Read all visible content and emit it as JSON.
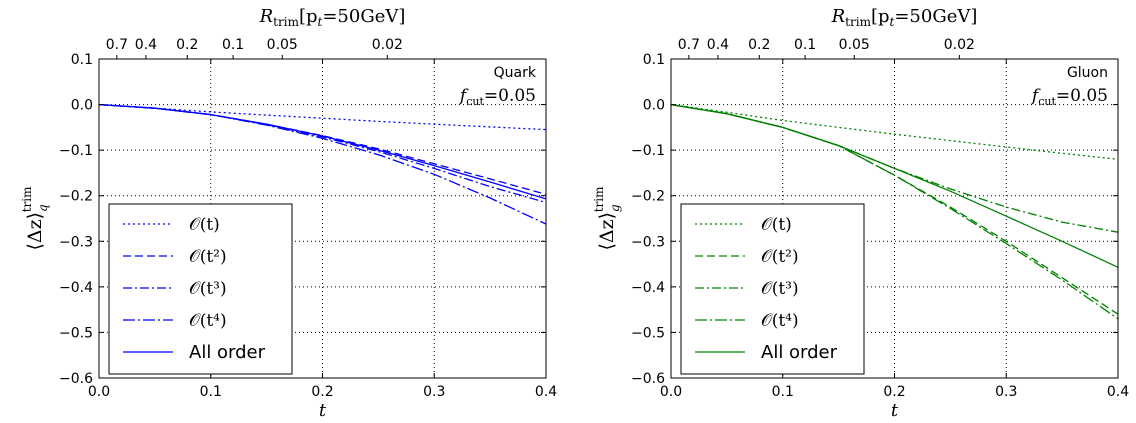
{
  "chart_data": [
    {
      "type": "line",
      "color": "#0000ff",
      "annotation": {
        "line1": "Quark",
        "fcut_label": "f",
        "fcut_sub": "cut",
        "fcut_value": "=0.05"
      },
      "xlabel": "t",
      "ylabel": {
        "main": "⟨Δz⟩",
        "sub": "q",
        "sup": "trim"
      },
      "top_axis": {
        "label_main": "R",
        "label_sub": "trim",
        "label_rest": "[p",
        "label_sub2": "t",
        "label_end": "=50GeV]",
        "ticks": [
          {
            "label": "0.7",
            "t": 0.016
          },
          {
            "label": "0.4",
            "t": 0.042
          },
          {
            "label": "0.2",
            "t": 0.079
          },
          {
            "label": "0.1",
            "t": 0.12
          },
          {
            "label": "0.05",
            "t": 0.164
          },
          {
            "label": "0.02",
            "t": 0.258
          }
        ]
      },
      "xlim": [
        0.0,
        0.4
      ],
      "ylim": [
        -0.6,
        0.1
      ],
      "xticks": [
        "0.0",
        "0.1",
        "0.2",
        "0.3",
        "0.4"
      ],
      "yticks": [
        "−0.6",
        "−0.5",
        "−0.4",
        "−0.3",
        "−0.2",
        "−0.1",
        "0.0",
        "0.1"
      ],
      "grid": true,
      "legend_position": "lower-left",
      "series": [
        {
          "name": "O(t)",
          "math": "𝒪(t)",
          "dash": "dotted",
          "x": [
            0,
            0.05,
            0.1,
            0.15,
            0.2,
            0.25,
            0.3,
            0.35,
            0.4
          ],
          "y": [
            0,
            -0.008,
            -0.016,
            -0.023,
            -0.03,
            -0.037,
            -0.043,
            -0.049,
            -0.055
          ]
        },
        {
          "name": "O(t^2)",
          "math": "𝒪(t²)",
          "dash": "dashed",
          "x": [
            0,
            0.05,
            0.1,
            0.15,
            0.2,
            0.25,
            0.3,
            0.35,
            0.4
          ],
          "y": [
            0,
            -0.008,
            -0.022,
            -0.043,
            -0.068,
            -0.097,
            -0.13,
            -0.163,
            -0.197
          ]
        },
        {
          "name": "O(t^3)",
          "math": "𝒪(t³)",
          "dash": "dashdot",
          "x": [
            0,
            0.05,
            0.1,
            0.15,
            0.2,
            0.25,
            0.3,
            0.35,
            0.4
          ],
          "y": [
            0,
            -0.008,
            -0.022,
            -0.044,
            -0.071,
            -0.103,
            -0.14,
            -0.18,
            -0.215
          ]
        },
        {
          "name": "O(t^4)",
          "math": "𝒪(t⁴)",
          "dash": "dashdot2",
          "x": [
            0,
            0.05,
            0.1,
            0.15,
            0.2,
            0.25,
            0.3,
            0.35,
            0.4
          ],
          "y": [
            0,
            -0.008,
            -0.022,
            -0.045,
            -0.074,
            -0.11,
            -0.153,
            -0.205,
            -0.262
          ]
        },
        {
          "name": "All order",
          "math": "All order",
          "dash": "solid",
          "x": [
            0,
            0.05,
            0.1,
            0.15,
            0.2,
            0.25,
            0.3,
            0.35,
            0.4
          ],
          "y": [
            0,
            -0.008,
            -0.022,
            -0.043,
            -0.069,
            -0.1,
            -0.134,
            -0.17,
            -0.207
          ]
        }
      ]
    },
    {
      "type": "line",
      "color": "#008000",
      "annotation": {
        "line1": "Gluon",
        "fcut_label": "f",
        "fcut_sub": "cut",
        "fcut_value": "=0.05"
      },
      "xlabel": "t",
      "ylabel": {
        "main": "⟨Δz⟩",
        "sub": "g",
        "sup": "trim"
      },
      "top_axis": {
        "label_main": "R",
        "label_sub": "trim",
        "label_rest": "[p",
        "label_sub2": "t",
        "label_end": "=50GeV]",
        "ticks": [
          {
            "label": "0.7",
            "t": 0.016
          },
          {
            "label": "0.4",
            "t": 0.042
          },
          {
            "label": "0.2",
            "t": 0.079
          },
          {
            "label": "0.1",
            "t": 0.12
          },
          {
            "label": "0.05",
            "t": 0.164
          },
          {
            "label": "0.02",
            "t": 0.258
          }
        ]
      },
      "xlim": [
        0.0,
        0.4
      ],
      "ylim": [
        -0.6,
        0.1
      ],
      "xticks": [
        "0.0",
        "0.1",
        "0.2",
        "0.3",
        "0.4"
      ],
      "yticks": [
        "−0.6",
        "−0.5",
        "−0.4",
        "−0.3",
        "−0.2",
        "−0.1",
        "0.0",
        "0.1"
      ],
      "grid": true,
      "legend_position": "lower-left",
      "series": [
        {
          "name": "O(t)",
          "math": "𝒪(t)",
          "dash": "dotted",
          "x": [
            0,
            0.05,
            0.1,
            0.15,
            0.2,
            0.25,
            0.3,
            0.35,
            0.4
          ],
          "y": [
            0,
            -0.017,
            -0.035,
            -0.05,
            -0.065,
            -0.079,
            -0.093,
            -0.107,
            -0.12
          ]
        },
        {
          "name": "O(t^2)",
          "math": "𝒪(t²)",
          "dash": "dashed",
          "x": [
            0,
            0.05,
            0.1,
            0.15,
            0.2,
            0.25,
            0.3,
            0.35,
            0.4
          ],
          "y": [
            0,
            -0.02,
            -0.05,
            -0.09,
            -0.155,
            -0.225,
            -0.3,
            -0.38,
            -0.46
          ]
        },
        {
          "name": "O(t^3)",
          "math": "𝒪(t³)",
          "dash": "dashdot",
          "x": [
            0,
            0.05,
            0.1,
            0.15,
            0.2,
            0.25,
            0.3,
            0.35,
            0.4
          ],
          "y": [
            0,
            -0.02,
            -0.05,
            -0.09,
            -0.14,
            -0.185,
            -0.225,
            -0.258,
            -0.28
          ]
        },
        {
          "name": "O(t^4)",
          "math": "𝒪(t⁴)",
          "dash": "dashdot2",
          "x": [
            0,
            0.05,
            0.1,
            0.15,
            0.2,
            0.25,
            0.3,
            0.35,
            0.4
          ],
          "y": [
            0,
            -0.02,
            -0.05,
            -0.09,
            -0.155,
            -0.228,
            -0.305,
            -0.385,
            -0.47
          ]
        },
        {
          "name": "All order",
          "math": "All order",
          "dash": "solid",
          "x": [
            0,
            0.05,
            0.1,
            0.15,
            0.2,
            0.25,
            0.3,
            0.35,
            0.4
          ],
          "y": [
            0,
            -0.02,
            -0.05,
            -0.09,
            -0.14,
            -0.19,
            -0.245,
            -0.3,
            -0.357
          ]
        }
      ]
    }
  ]
}
